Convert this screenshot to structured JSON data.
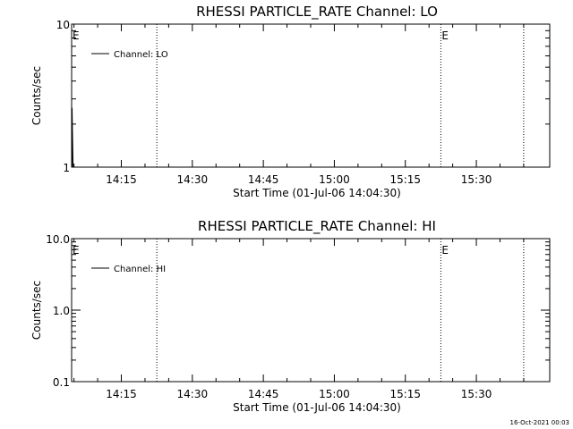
{
  "footer": "16-Oct-2021 00:03",
  "chart_data": [
    {
      "type": "line",
      "title": "RHESSI PARTICLE_RATE Channel: LO",
      "xlabel": "Start Time (01-Jul-06 14:04:30)",
      "ylabel": "Counts/sec",
      "y_scale": "log",
      "ylim": [
        1,
        10
      ],
      "y_ticks": [
        {
          "value": 1,
          "label": "1"
        },
        {
          "value": 10,
          "label": "10"
        }
      ],
      "x_range": [
        "14:04:30",
        "15:45:30"
      ],
      "x_ticks": [
        {
          "time": "14:15",
          "label": "14:15"
        },
        {
          "time": "14:30",
          "label": "14:30"
        },
        {
          "time": "14:45",
          "label": "14:45"
        },
        {
          "time": "15:00",
          "label": "15:00"
        },
        {
          "time": "15:15",
          "label": "15:15"
        },
        {
          "time": "15:30",
          "label": "15:30"
        }
      ],
      "event_lines": [
        {
          "time": "14:04:30",
          "label": "E"
        },
        {
          "time": "14:22:30",
          "label": ""
        },
        {
          "time": "15:22:30",
          "label": "E"
        },
        {
          "time": "15:40:00",
          "label": ""
        }
      ],
      "legend": "top-left",
      "series": [
        {
          "name": "Channel: LO",
          "points": [
            {
              "t": "14:04:34",
              "v": 1.0
            },
            {
              "t": "14:04:36",
              "v": 2.6
            },
            {
              "t": "14:04:40",
              "v": 1.8
            },
            {
              "t": "14:04:48",
              "v": 1.0
            }
          ]
        }
      ]
    },
    {
      "type": "line",
      "title": "RHESSI PARTICLE_RATE Channel: HI",
      "xlabel": "Start Time (01-Jul-06 14:04:30)",
      "ylabel": "Counts/sec",
      "y_scale": "log",
      "ylim": [
        0.1,
        10
      ],
      "y_ticks": [
        {
          "value": 0.1,
          "label": "0.1"
        },
        {
          "value": 1,
          "label": "1.0"
        },
        {
          "value": 10,
          "label": "10.0"
        }
      ],
      "x_range": [
        "14:04:30",
        "15:45:30"
      ],
      "x_ticks": [
        {
          "time": "14:15",
          "label": "14:15"
        },
        {
          "time": "14:30",
          "label": "14:30"
        },
        {
          "time": "14:45",
          "label": "14:45"
        },
        {
          "time": "15:00",
          "label": "15:00"
        },
        {
          "time": "15:15",
          "label": "15:15"
        },
        {
          "time": "15:30",
          "label": "15:30"
        }
      ],
      "event_lines": [
        {
          "time": "14:04:30",
          "label": "E"
        },
        {
          "time": "14:22:30",
          "label": ""
        },
        {
          "time": "15:22:30",
          "label": "E"
        },
        {
          "time": "15:40:00",
          "label": ""
        }
      ],
      "legend": "top-left",
      "series": [
        {
          "name": "Channel: HI",
          "points": []
        }
      ]
    }
  ]
}
